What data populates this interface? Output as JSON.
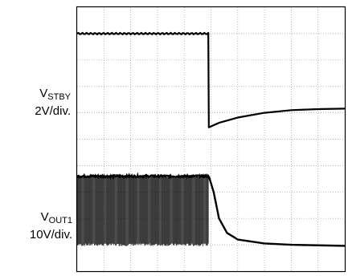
{
  "chart_data": {
    "type": "line",
    "grid": true,
    "x_divisions": 10,
    "y_divisions": 10,
    "channels": [
      {
        "signal_base": "V",
        "signal_sub": "STBY",
        "scale": "2V/div.",
        "trace": {
          "x_div": [
            0,
            4.92,
            4.92,
            5.3,
            6,
            7,
            8,
            9,
            10
          ],
          "y_div": [
            9.0,
            9.0,
            5.45,
            5.62,
            5.82,
            6.0,
            6.1,
            6.14,
            6.16
          ]
        }
      },
      {
        "signal_base": "V",
        "signal_sub": "OUT1",
        "scale": "10V/div.",
        "trace": {
          "switching_until_div": 4.92,
          "high_level_div": 3.6,
          "low_level_div": 1.0,
          "decay_x_div": [
            4.92,
            5.1,
            5.3,
            5.6,
            6.0,
            7.0,
            8.0,
            9.0,
            10.0
          ],
          "decay_y_div": [
            3.6,
            3.0,
            2.0,
            1.45,
            1.2,
            1.05,
            1.0,
            0.98,
            0.96
          ]
        }
      }
    ]
  },
  "colors": {
    "trace": "#000000",
    "grid": "#9a9a9a",
    "frame": "#000000",
    "background": "#ffffff"
  }
}
